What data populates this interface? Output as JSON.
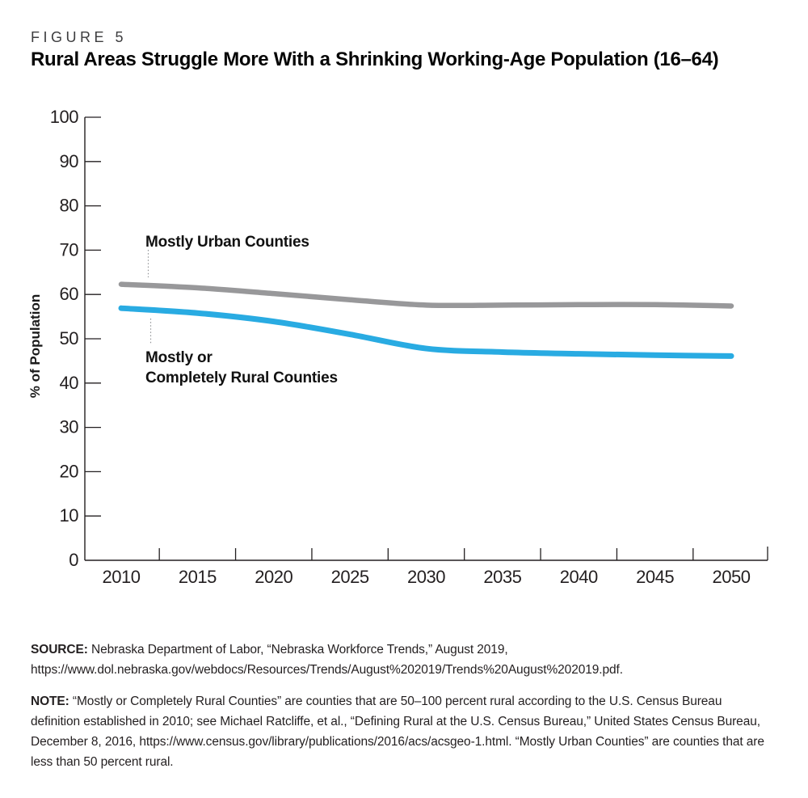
{
  "header": {
    "figure_label": "FIGURE 5",
    "title": "Rural Areas Struggle More With a Shrinking Working-Age Population (16–64)"
  },
  "chart_data": {
    "type": "line",
    "title": "Rural Areas Struggle More With a Shrinking Working-Age Population (16–64)",
    "xlabel": "",
    "ylabel": "% of Population",
    "x": [
      2010,
      2015,
      2020,
      2025,
      2030,
      2035,
      2040,
      2045,
      2050
    ],
    "xtick_labels": [
      "2010",
      "2015",
      "2020",
      "2025",
      "2030",
      "2035",
      "2040",
      "2045",
      "2050"
    ],
    "ylim": [
      0,
      100
    ],
    "ytick_step": 10,
    "grid": false,
    "legend_position": "inline-annotations",
    "axis_color": "#231f20",
    "series": [
      {
        "name": "Mostly Urban Counties",
        "color": "#98989a",
        "values": [
          62.3,
          61.5,
          60.2,
          58.8,
          57.6,
          57.6,
          57.7,
          57.7,
          57.4
        ]
      },
      {
        "name": "Mostly or Completely Rural Counties",
        "color": "#29abe2",
        "values": [
          56.9,
          55.8,
          53.9,
          51.0,
          47.8,
          47.0,
          46.6,
          46.3,
          46.1
        ]
      }
    ],
    "annotations": [
      {
        "series": "Mostly Urban Counties",
        "text_lines": [
          "Mostly Urban Counties"
        ]
      },
      {
        "series": "Mostly or Completely Rural Counties",
        "text_lines": [
          "Mostly or",
          "Completely Rural Counties"
        ]
      }
    ]
  },
  "footer": {
    "source_label": "SOURCE:",
    "source_text": " Nebraska Department of Labor, “Nebraska Workforce Trends,” August 2019, https://www.dol.nebraska.gov/webdocs/Resources/Trends/August%202019/Trends%20August%202019.pdf.",
    "note_label": "NOTE:",
    "note_text": " “Mostly or Completely Rural Counties” are counties that are 50–100 percent rural according to the U.S. Census Bureau definition established in 2010; see Michael Ratcliffe, et al., “Defining Rural at the U.S. Census Bureau,” United States Census Bureau, December 8, 2016, https://www.census.gov/library/publications/2016/acs/acsgeo-1.html. “Mostly Urban Counties” are counties that are less than 50 percent rural."
  }
}
